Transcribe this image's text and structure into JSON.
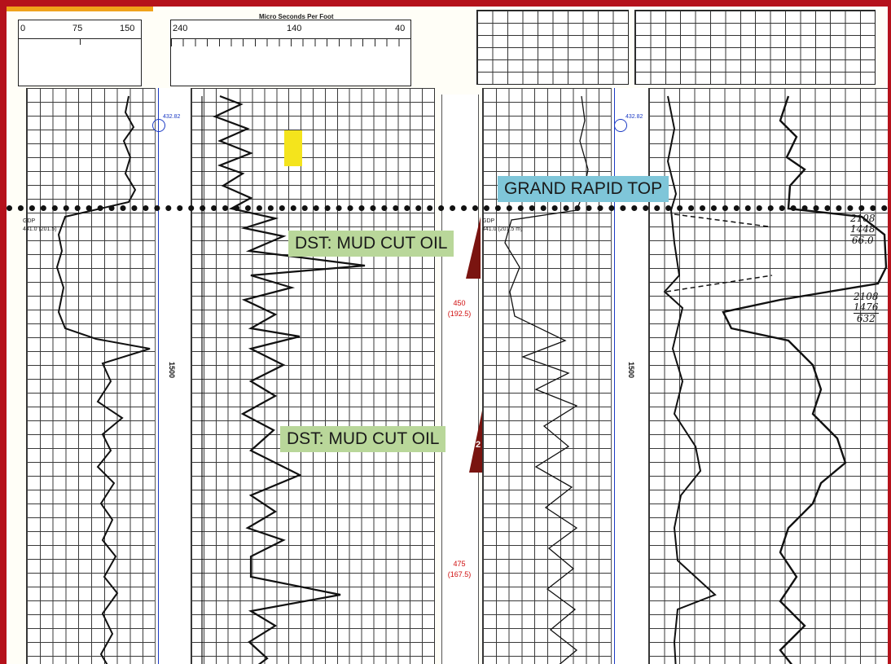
{
  "header": {
    "caption": "Micro Seconds Per Foot",
    "scale_left_ticks": [
      "0",
      "75",
      "150"
    ],
    "scale_mid_ticks": [
      "240",
      "140",
      "40"
    ]
  },
  "annotations": {
    "top_marker": "GRAND RAPID TOP",
    "dst_upper": "DST: MUD CUT OIL",
    "dst_lower": "DST: MUD CUT OIL",
    "dst_number": "2"
  },
  "depth_column": {
    "mark_1_depth": "450",
    "mark_1_elev": "(192.5)",
    "mark_2_depth": "475",
    "mark_2_elev": "(167.5)"
  },
  "tracks": {
    "left_vertical_label": "1500",
    "right_vertical_label": "1500",
    "left_marker_value": "432.82",
    "right_marker_value": "432.82",
    "left_small_note_1": "GDP",
    "left_small_note_2": "441.0 (201.5)",
    "right_small_note_1": "GDP",
    "right_small_note_2": "441.0 (201.5 m)"
  },
  "handwritten": {
    "upper": [
      "2108",
      "1448",
      "66.0"
    ],
    "lower": [
      "2108",
      "1476",
      "632"
    ]
  },
  "colors": {
    "frame": "#b5121b",
    "top_label_bg": "#7fc6d9",
    "dst_label_bg": "#b9d79a",
    "highlight": "#f4e41c",
    "depth_red": "#d01010",
    "marker_blue": "#1c3bc4",
    "dst_flag": "#7a1410"
  }
}
